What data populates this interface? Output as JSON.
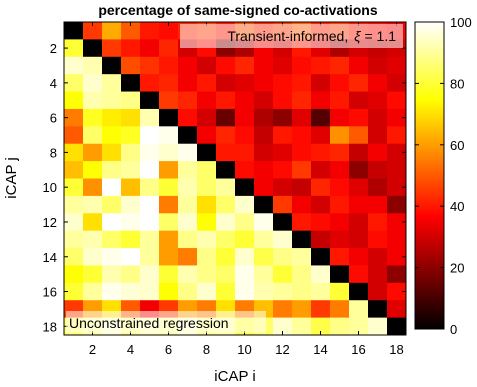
{
  "chart_data": {
    "type": "heatmap",
    "title": "percentage of same-signed co-activations",
    "xlabel": "iCAP i",
    "ylabel": "iCAP j",
    "x_ticks": [
      2,
      4,
      6,
      8,
      10,
      12,
      14,
      16,
      18
    ],
    "y_ticks": [
      2,
      4,
      6,
      8,
      10,
      12,
      14,
      16,
      18
    ],
    "n": 18,
    "colorbar": {
      "min": 0,
      "max": 100,
      "ticks": [
        0,
        20,
        40,
        60,
        80,
        100
      ],
      "colormap": "hot"
    },
    "annotations": {
      "upper": {
        "prefix": "Transient-informed,",
        "symbol": "ξ",
        "suffix": "= 1.1"
      },
      "lower": "Unconstrained regression"
    },
    "values": [
      [
        0,
        45,
        62,
        50,
        40,
        38,
        42,
        45,
        40,
        48,
        42,
        45,
        50,
        42,
        45,
        40,
        38,
        35
      ],
      [
        80,
        0,
        45,
        40,
        35,
        42,
        30,
        38,
        20,
        25,
        35,
        30,
        40,
        32,
        25,
        30,
        28,
        30
      ],
      [
        95,
        92,
        0,
        48,
        44,
        40,
        35,
        30,
        38,
        42,
        35,
        32,
        38,
        40,
        42,
        35,
        30,
        32
      ],
      [
        85,
        95,
        90,
        0,
        40,
        42,
        35,
        40,
        30,
        32,
        35,
        38,
        40,
        30,
        38,
        42,
        35,
        30
      ],
      [
        75,
        92,
        90,
        88,
        0,
        45,
        42,
        35,
        40,
        35,
        30,
        38,
        42,
        35,
        40,
        30,
        32,
        38
      ],
      [
        55,
        78,
        72,
        70,
        92,
        0,
        38,
        30,
        15,
        35,
        25,
        20,
        32,
        12,
        35,
        38,
        30,
        35
      ],
      [
        50,
        85,
        75,
        78,
        100,
        98,
        0,
        35,
        42,
        38,
        28,
        40,
        38,
        32,
        58,
        50,
        30,
        40
      ],
      [
        70,
        60,
        70,
        88,
        98,
        95,
        98,
        0,
        40,
        40,
        30,
        32,
        38,
        40,
        42,
        28,
        35,
        30
      ],
      [
        65,
        75,
        88,
        90,
        100,
        60,
        90,
        85,
        0,
        38,
        35,
        38,
        45,
        30,
        35,
        20,
        28,
        30
      ],
      [
        80,
        58,
        100,
        65,
        88,
        80,
        92,
        85,
        90,
        0,
        35,
        30,
        28,
        42,
        38,
        32,
        25,
        30
      ],
      [
        90,
        92,
        85,
        95,
        100,
        55,
        90,
        70,
        85,
        95,
        0,
        45,
        35,
        30,
        40,
        35,
        35,
        20
      ],
      [
        95,
        70,
        100,
        98,
        100,
        85,
        95,
        75,
        95,
        88,
        98,
        0,
        40,
        38,
        35,
        30,
        40,
        35
      ],
      [
        90,
        92,
        85,
        80,
        90,
        60,
        88,
        92,
        85,
        80,
        90,
        95,
        0,
        28,
        32,
        30,
        38,
        35
      ],
      [
        85,
        95,
        98,
        100,
        90,
        60,
        55,
        88,
        80,
        95,
        82,
        88,
        90,
        0,
        40,
        35,
        30,
        35
      ],
      [
        75,
        80,
        92,
        88,
        95,
        80,
        92,
        88,
        85,
        98,
        90,
        80,
        88,
        95,
        0,
        38,
        30,
        20
      ],
      [
        80,
        90,
        98,
        96,
        95,
        75,
        88,
        95,
        80,
        98,
        92,
        90,
        88,
        90,
        80,
        0,
        30,
        38
      ],
      [
        45,
        60,
        70,
        50,
        35,
        45,
        60,
        55,
        70,
        55,
        65,
        55,
        60,
        45,
        55,
        90,
        0,
        32
      ],
      [
        85,
        90,
        95,
        88,
        92,
        90,
        95,
        88,
        90,
        80,
        85,
        95,
        90,
        82,
        88,
        90,
        95,
        0
      ]
    ]
  }
}
